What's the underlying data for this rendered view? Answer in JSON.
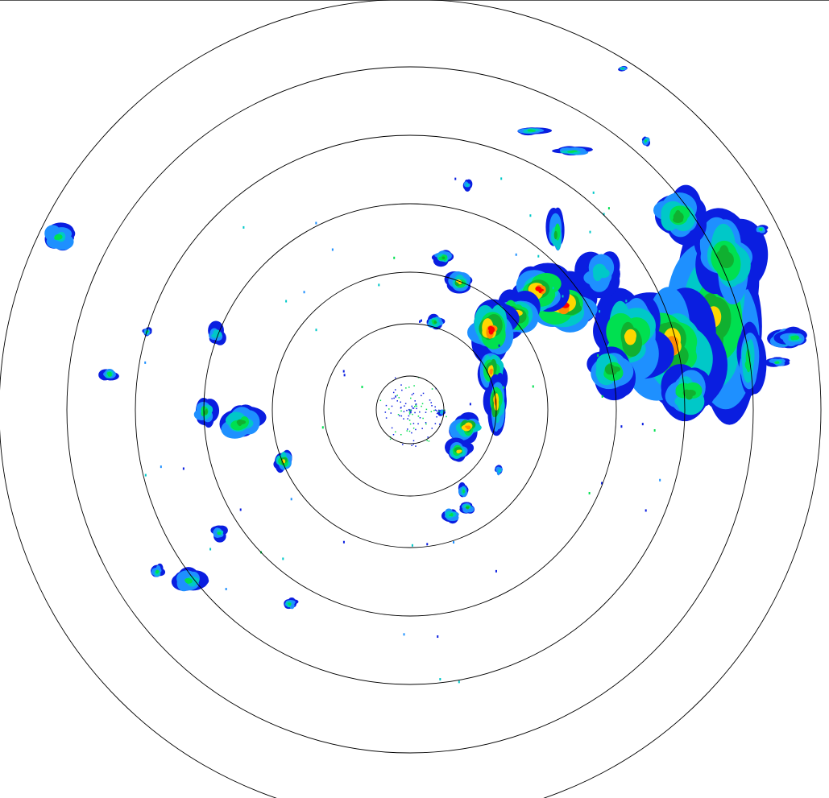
{
  "radar": {
    "product": "reflectivity",
    "range_ring_count": 7,
    "ring_color": "#000000",
    "background": "#ffffff",
    "color_scale": [
      "#0a1ee0",
      "#1e90ff",
      "#00c8c8",
      "#00e050",
      "#10b030",
      "#ffd700",
      "#ff8c00",
      "#ff0000"
    ]
  }
}
